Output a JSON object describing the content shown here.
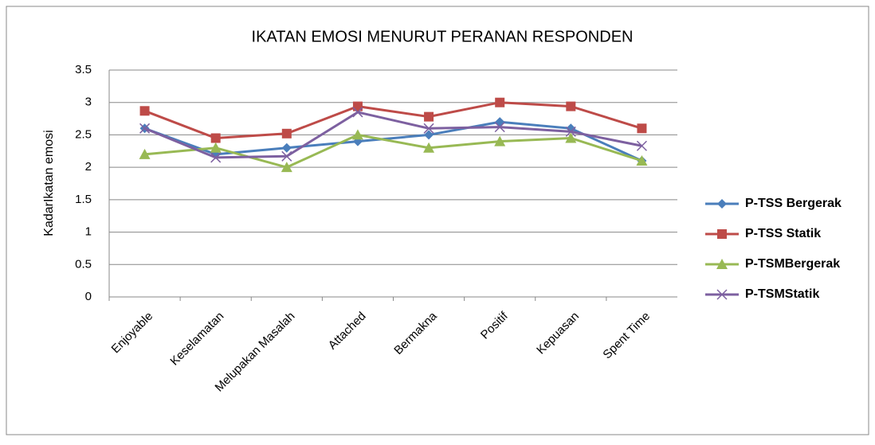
{
  "chart_data": {
    "type": "line",
    "title": "IKATAN EMOSI MENURUT PERANAN RESPONDEN",
    "y_label": "KadarIkatan emosi",
    "categories": [
      "Enjoyable",
      "Keselamatan",
      "Melupakan Masalah",
      "Attached",
      "Bermakna",
      "Positif",
      "Kepuasan",
      "Spent Time"
    ],
    "series": [
      {
        "name": "P-TSS Bergerak",
        "color": "#4a7ebb",
        "marker": "diamond",
        "values": [
          2.6,
          2.2,
          2.3,
          2.4,
          2.5,
          2.7,
          2.6,
          2.1
        ]
      },
      {
        "name": "P-TSS Statik",
        "color": "#be4b48",
        "marker": "square",
        "values": [
          2.87,
          2.45,
          2.52,
          2.94,
          2.78,
          3.0,
          2.94,
          2.6
        ]
      },
      {
        "name": "P-TSMBergerak",
        "color": "#98b954",
        "marker": "triangle",
        "values": [
          2.2,
          2.3,
          2.0,
          2.5,
          2.3,
          2.4,
          2.45,
          2.1
        ]
      },
      {
        "name": "P-TSMStatik",
        "color": "#7d60a0",
        "marker": "x",
        "values": [
          2.6,
          2.15,
          2.17,
          2.85,
          2.6,
          2.62,
          2.55,
          2.33
        ]
      }
    ],
    "ylim": [
      0,
      3.5
    ],
    "yticks": [
      0,
      0.5,
      1,
      1.5,
      2,
      2.5,
      3,
      3.5
    ],
    "grid": true,
    "legend": "right"
  }
}
